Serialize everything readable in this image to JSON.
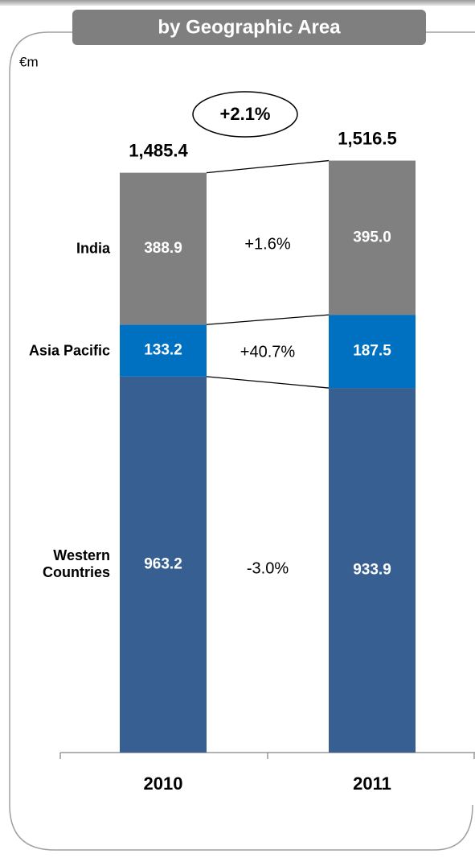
{
  "chart_data": {
    "type": "stacked-bar",
    "title": "by Geographic Area",
    "unit": "€m",
    "categories": [
      "2010",
      "2011"
    ],
    "series": [
      {
        "name": "Western Countries",
        "color": "#375f92",
        "values": [
          963.2,
          933.9
        ],
        "growth": "-3.0%"
      },
      {
        "name": "Asia Pacific",
        "color": "#0070c0",
        "values": [
          133.2,
          187.5
        ],
        "growth": "+40.7%"
      },
      {
        "name": "India",
        "color": "#808080",
        "values": [
          388.9,
          395.0
        ],
        "value_labels": [
          "388.9",
          "395.0"
        ],
        "growth": "+1.6%"
      }
    ],
    "totals": [
      1485.4,
      1516.5
    ],
    "total_labels": [
      "1,485.4",
      "1,516.5"
    ],
    "total_growth": "+2.1%",
    "ylim": [
      0,
      1600
    ]
  }
}
